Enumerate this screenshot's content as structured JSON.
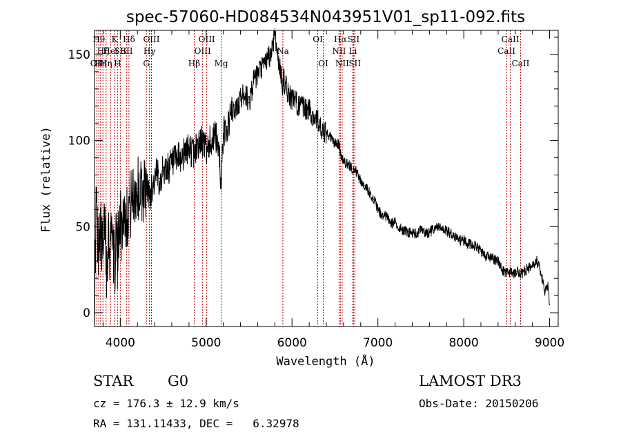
{
  "chart_data": {
    "type": "line",
    "title": "spec-57060-HD084534N043951V01_sp11-092.fits",
    "xlabel": "Wavelength (Å)",
    "ylabel": "Flux (relative)",
    "xlim": [
      3700,
      9100
    ],
    "ylim": [
      -8,
      164
    ],
    "xticks": [
      4000,
      5000,
      6000,
      7000,
      8000,
      9000
    ],
    "yticks": [
      0,
      50,
      100,
      150
    ],
    "series": [
      {
        "name": "flux",
        "x": [
          3700,
          3720,
          3740,
          3760,
          3780,
          3800,
          3820,
          3840,
          3860,
          3880,
          3900,
          3920,
          3933,
          3950,
          3968,
          3990,
          4010,
          4040,
          4080,
          4100,
          4120,
          4150,
          4200,
          4250,
          4300,
          4340,
          4380,
          4420,
          4460,
          4500,
          4550,
          4600,
          4650,
          4700,
          4750,
          4800,
          4861,
          4900,
          4950,
          5000,
          5050,
          5100,
          5150,
          5175,
          5200,
          5250,
          5300,
          5350,
          5400,
          5450,
          5500,
          5550,
          5600,
          5650,
          5700,
          5750,
          5780,
          5800,
          5810,
          5830,
          5850,
          5870,
          5890,
          5900,
          5950,
          6000,
          6050,
          6100,
          6150,
          6200,
          6250,
          6300,
          6350,
          6400,
          6450,
          6500,
          6550,
          6563,
          6600,
          6650,
          6700,
          6750,
          6800,
          6850,
          6900,
          6950,
          7000,
          7050,
          7100,
          7150,
          7200,
          7250,
          7300,
          7350,
          7400,
          7450,
          7500,
          7550,
          7600,
          7650,
          7700,
          7750,
          7800,
          7850,
          7900,
          7950,
          8000,
          8050,
          8100,
          8150,
          8200,
          8250,
          8300,
          8350,
          8400,
          8450,
          8498,
          8542,
          8580,
          8620,
          8662,
          8700,
          8750,
          8800,
          8850,
          8880,
          8900,
          8920,
          8940,
          8960,
          8980,
          9000
        ],
        "y": [
          0,
          68,
          38,
          52,
          44,
          30,
          58,
          26,
          48,
          36,
          55,
          40,
          20,
          50,
          28,
          62,
          48,
          60,
          55,
          65,
          62,
          68,
          72,
          70,
          75,
          68,
          74,
          80,
          78,
          82,
          84,
          86,
          88,
          90,
          92,
          96,
          92,
          98,
          100,
          95,
          100,
          102,
          98,
          72,
          104,
          108,
          116,
          118,
          124,
          128,
          122,
          134,
          138,
          142,
          146,
          150,
          156,
          165,
          160,
          148,
          144,
          140,
          132,
          136,
          128,
          124,
          122,
          120,
          118,
          118,
          114,
          112,
          104,
          104,
          102,
          98,
          98,
          92,
          88,
          86,
          84,
          82,
          76,
          74,
          70,
          66,
          60,
          56,
          56,
          52,
          52,
          49,
          48,
          47,
          46,
          46,
          48,
          46,
          47,
          48,
          50,
          48,
          48,
          46,
          44,
          42,
          42,
          40,
          40,
          38,
          36,
          33,
          32,
          31,
          30,
          25,
          23,
          24,
          22,
          24,
          22,
          24,
          26,
          27,
          30,
          26,
          22,
          18,
          12,
          14,
          15,
          5
        ]
      }
    ],
    "line_markers": [
      {
        "wavelength": 3727,
        "label": "OII",
        "row": 2
      },
      {
        "wavelength": 3750,
        "label": "Hθ",
        "row": 0
      },
      {
        "wavelength": 3771,
        "label": "Hη",
        "row": 2
      },
      {
        "wavelength": 3798,
        "label": "Hζ",
        "row": 1
      },
      {
        "wavelength": 3835,
        "label": "Hη",
        "row": 2
      },
      {
        "wavelength": 3889,
        "label": "HeI",
        "row": 1
      },
      {
        "wavelength": 3933,
        "label": "K",
        "row": 0
      },
      {
        "wavelength": 3968,
        "label": "H",
        "row": 2
      },
      {
        "wavelength": 4000,
        "label": "SII",
        "row": 1
      },
      {
        "wavelength": 4101,
        "label": "Hδ",
        "row": 0
      },
      {
        "wavelength": 4075,
        "label": "SII",
        "row": 1
      },
      {
        "wavelength": 4304,
        "label": "G",
        "row": 2
      },
      {
        "wavelength": 4340,
        "label": "Hγ",
        "row": 1
      },
      {
        "wavelength": 4363,
        "label": "OIII",
        "row": 0
      },
      {
        "wavelength": 4861,
        "label": "Hβ",
        "row": 2
      },
      {
        "wavelength": 4959,
        "label": "OIII",
        "row": 1
      },
      {
        "wavelength": 5007,
        "label": "OIII",
        "row": 0
      },
      {
        "wavelength": 5175,
        "label": "Mg",
        "row": 2
      },
      {
        "wavelength": 5893,
        "label": "Na",
        "row": 1
      },
      {
        "wavelength": 6300,
        "label": "OI",
        "row": 0
      },
      {
        "wavelength": 6364,
        "label": "OI",
        "row": 2
      },
      {
        "wavelength": 6548,
        "label": "NII",
        "row": 1
      },
      {
        "wavelength": 6563,
        "label": "Hα",
        "row": 0
      },
      {
        "wavelength": 6584,
        "label": "NII",
        "row": 2
      },
      {
        "wavelength": 6708,
        "label": "Li",
        "row": 1
      },
      {
        "wavelength": 6716,
        "label": "SII",
        "row": 0
      },
      {
        "wavelength": 6731,
        "label": "SII",
        "row": 2
      },
      {
        "wavelength": 8498,
        "label": "CaII",
        "row": 1
      },
      {
        "wavelength": 8542,
        "label": "CaII",
        "row": 0
      },
      {
        "wavelength": 8662,
        "label": "CaII",
        "row": 2
      }
    ]
  },
  "info": {
    "object_class": "STAR",
    "subclass": "G0",
    "survey": "LAMOST DR3",
    "redshift": "cz = 176.3 ± 12.9 km/s",
    "obs_date": "Obs-Date: 20150206",
    "coords": "RA = 131.11433, DEC =   6.32978"
  }
}
